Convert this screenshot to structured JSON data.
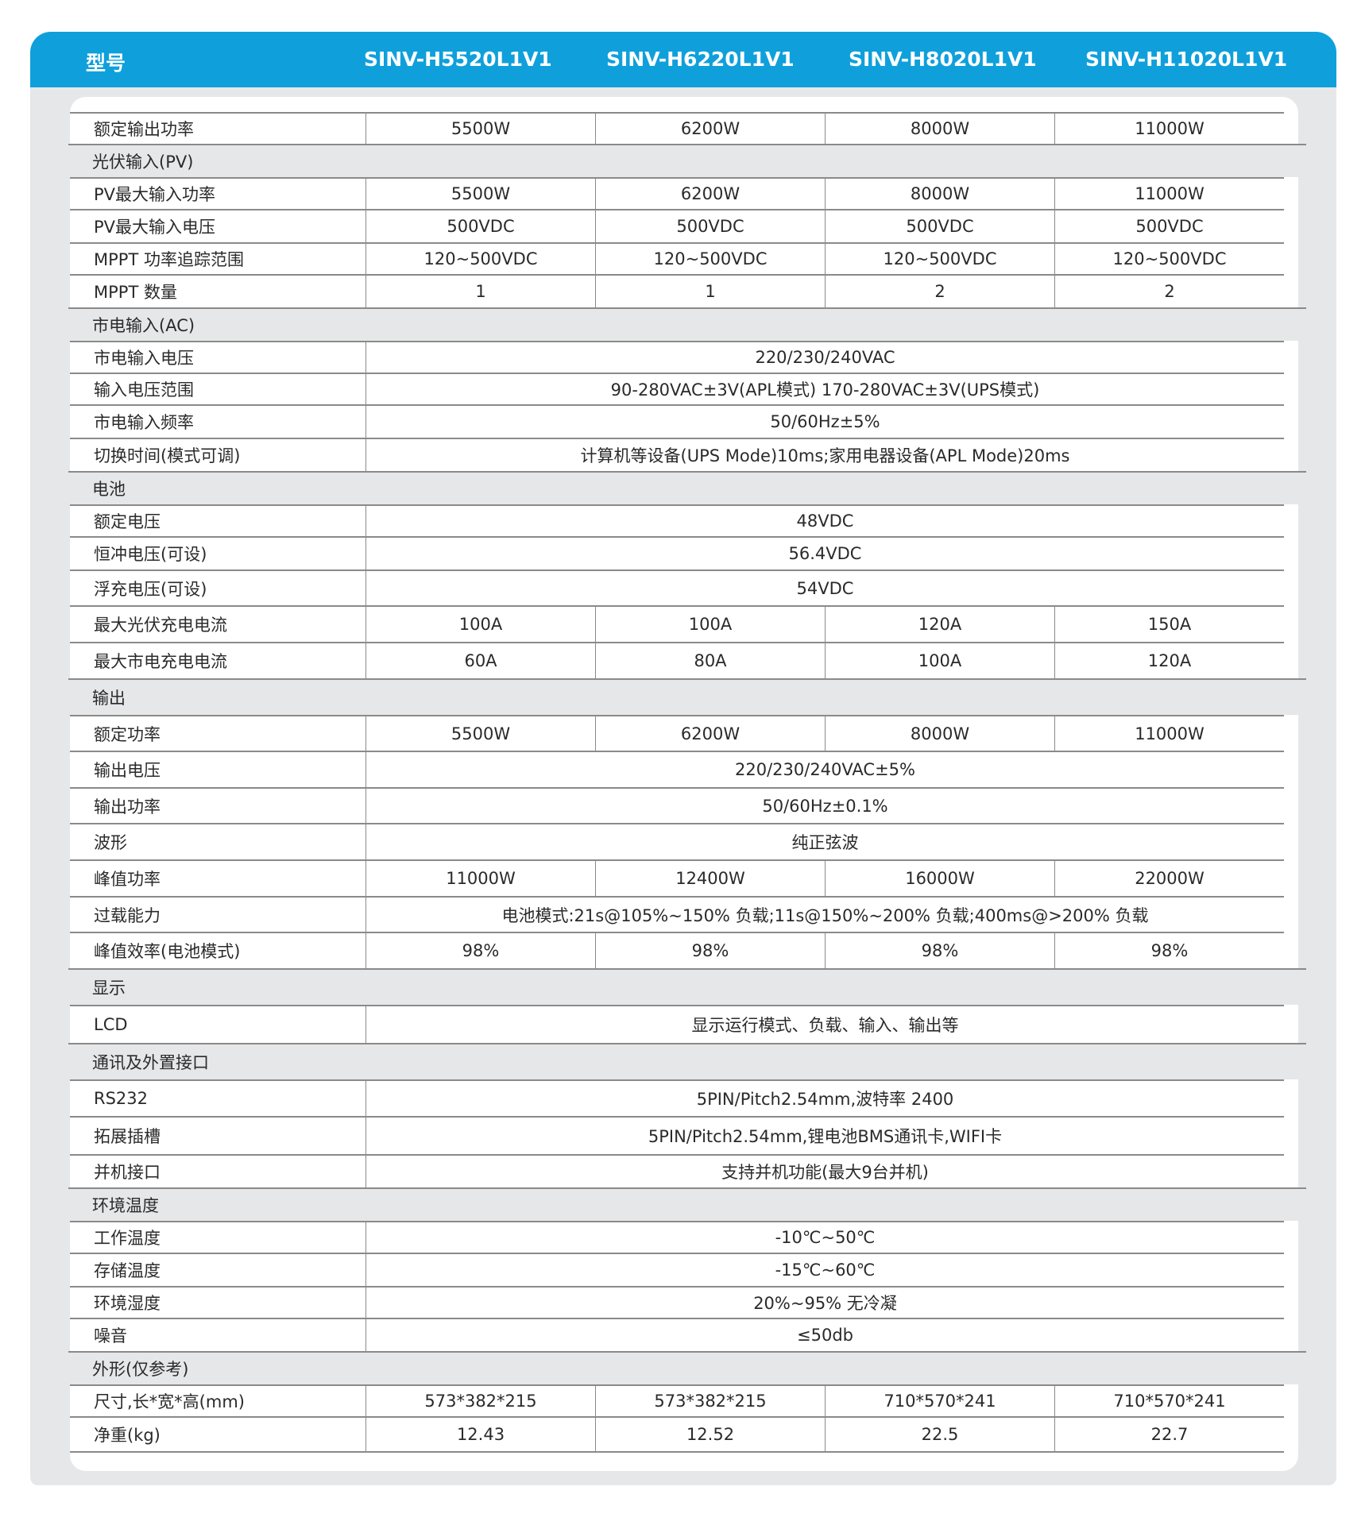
{
  "header": {
    "label": "型号",
    "models": [
      "SINV-H5520L1V1",
      "SINV-H6220L1V1",
      "SINV-H8020L1V1",
      "SINV-H11020L1V1"
    ]
  },
  "colors": {
    "header_blue": "#0fa0dc",
    "section_grey": "#e6e7e8"
  },
  "rows": [
    {
      "type": "spec",
      "label": "额定输出功率",
      "values": [
        "5500W",
        "6200W",
        "8000W",
        "11000W"
      ]
    },
    {
      "type": "section",
      "label": "光伏输入(PV)"
    },
    {
      "type": "spec",
      "label": "PV最大输入功率",
      "values": [
        "5500W",
        "6200W",
        "8000W",
        "11000W"
      ]
    },
    {
      "type": "spec",
      "label": "PV最大输入电压",
      "values": [
        "500VDC",
        "500VDC",
        "500VDC",
        "500VDC"
      ]
    },
    {
      "type": "spec",
      "label": "MPPT 功率追踪范围",
      "values": [
        "120~500VDC",
        "120~500VDC",
        "120~500VDC",
        "120~500VDC"
      ]
    },
    {
      "type": "spec",
      "label": "MPPT 数量",
      "values": [
        "1",
        "1",
        "2",
        "2"
      ]
    },
    {
      "type": "section",
      "label": "市电输入(AC)"
    },
    {
      "type": "spec",
      "label": "市电输入电压",
      "values": [
        "220/230/240VAC"
      ]
    },
    {
      "type": "spec",
      "label": "输入电压范围",
      "values": [
        "90-280VAC±3V(APL模式) 170-280VAC±3V(UPS模式)"
      ]
    },
    {
      "type": "spec",
      "label": "市电输入频率",
      "values": [
        "50/60Hz±5%"
      ]
    },
    {
      "type": "spec",
      "label": "切换时间(模式可调)",
      "values": [
        "计算机等设备(UPS Mode)10ms;家用电器设备(APL Mode)20ms"
      ]
    },
    {
      "type": "section",
      "label": "电池"
    },
    {
      "type": "spec",
      "label": "额定电压",
      "values": [
        "48VDC"
      ]
    },
    {
      "type": "spec",
      "label": "恒冲电压(可设)",
      "values": [
        "56.4VDC"
      ]
    },
    {
      "type": "spec",
      "label": "浮充电压(可设)",
      "values": [
        "54VDC"
      ]
    },
    {
      "type": "spec",
      "label": "最大光伏充电电流",
      "values": [
        "100A",
        "100A",
        "120A",
        "150A"
      ]
    },
    {
      "type": "spec",
      "label": "最大市电充电电流",
      "values": [
        "60A",
        "80A",
        "100A",
        "120A"
      ]
    },
    {
      "type": "section",
      "label": "输出"
    },
    {
      "type": "spec",
      "label": "额定功率",
      "values": [
        "5500W",
        "6200W",
        "8000W",
        "11000W"
      ]
    },
    {
      "type": "spec",
      "label": "输出电压",
      "values": [
        "220/230/240VAC±5%"
      ]
    },
    {
      "type": "spec",
      "label": "输出功率",
      "values": [
        "50/60Hz±0.1%"
      ]
    },
    {
      "type": "spec",
      "label": "波形",
      "values": [
        "纯正弦波"
      ]
    },
    {
      "type": "spec",
      "label": "峰值功率",
      "values": [
        "11000W",
        "12400W",
        "16000W",
        "22000W"
      ]
    },
    {
      "type": "spec",
      "label": "过载能力",
      "values": [
        "电池模式:21s@105%~150% 负载;11s@150%~200% 负载;400ms@>200% 负载"
      ]
    },
    {
      "type": "spec",
      "label": "峰值效率(电池模式)",
      "values": [
        "98%",
        "98%",
        "98%",
        "98%"
      ]
    },
    {
      "type": "section",
      "label": "显示"
    },
    {
      "type": "spec",
      "label": "LCD",
      "values": [
        "显示运行模式、负载、输入、输出等"
      ]
    },
    {
      "type": "section",
      "label": "通讯及外置接口"
    },
    {
      "type": "spec",
      "label": "RS232",
      "values": [
        "5PIN/Pitch2.54mm,波特率 2400"
      ]
    },
    {
      "type": "spec",
      "label": "拓展插槽",
      "values": [
        "5PIN/Pitch2.54mm,锂电池BMS通讯卡,WIFI卡"
      ]
    },
    {
      "type": "spec",
      "label": "并机接口",
      "values": [
        "支持并机功能(最大9台并机)"
      ]
    },
    {
      "type": "section",
      "label": "环境温度"
    },
    {
      "type": "spec",
      "label": "工作温度",
      "values": [
        "-10℃~50℃"
      ]
    },
    {
      "type": "spec",
      "label": "存储温度",
      "values": [
        "-15℃~60℃"
      ]
    },
    {
      "type": "spec",
      "label": "环境湿度",
      "values": [
        "20%~95% 无冷凝"
      ]
    },
    {
      "type": "spec",
      "label": "噪音",
      "values": [
        "≤50db"
      ]
    },
    {
      "type": "section",
      "label": "外形(仅参考)"
    },
    {
      "type": "spec",
      "label": "尺寸,长*宽*高(mm)",
      "values": [
        "573*382*215",
        "573*382*215",
        "710*570*241",
        "710*570*241"
      ]
    },
    {
      "type": "spec",
      "label": "净重(kg)",
      "values": [
        "12.43",
        "12.52",
        "22.5",
        "22.7"
      ]
    }
  ]
}
